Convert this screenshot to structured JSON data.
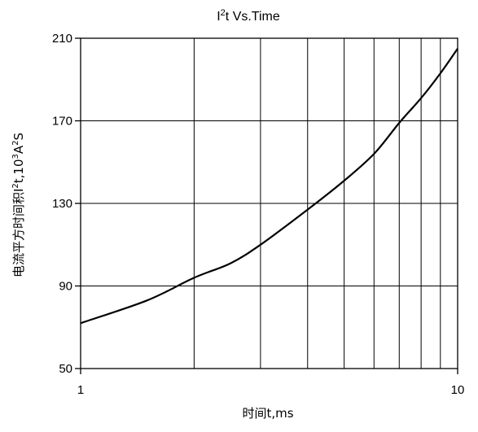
{
  "chart_data": {
    "type": "line",
    "title": {
      "base": "I",
      "sup": "2",
      "rest": "t  Vs.Time"
    },
    "xlabel": "时间t,ms",
    "ylabel": {
      "prefix": "电流平方时间积I",
      "sup1": "2",
      "mid": "t,10",
      "sup2": "3",
      "mid2": "A",
      "sup3": "2",
      "suffix": "S"
    },
    "x_scale": "log",
    "xlim": [
      1,
      10
    ],
    "ylim": [
      50,
      210
    ],
    "x_ticks": [
      1,
      10
    ],
    "x_tick_labels": [
      "1",
      "10"
    ],
    "y_ticks": [
      50,
      90,
      130,
      170,
      210
    ],
    "y_tick_labels": [
      "50",
      "90",
      "130",
      "170",
      "210"
    ],
    "grid": true,
    "series": [
      {
        "x": [
          1,
          1.5,
          2,
          2.5,
          3,
          4,
          5,
          6,
          7,
          8,
          9,
          10
        ],
        "y": [
          72,
          83,
          94,
          101,
          110,
          127,
          141,
          154,
          169,
          181,
          193,
          205
        ],
        "color": "#000000"
      }
    ]
  }
}
